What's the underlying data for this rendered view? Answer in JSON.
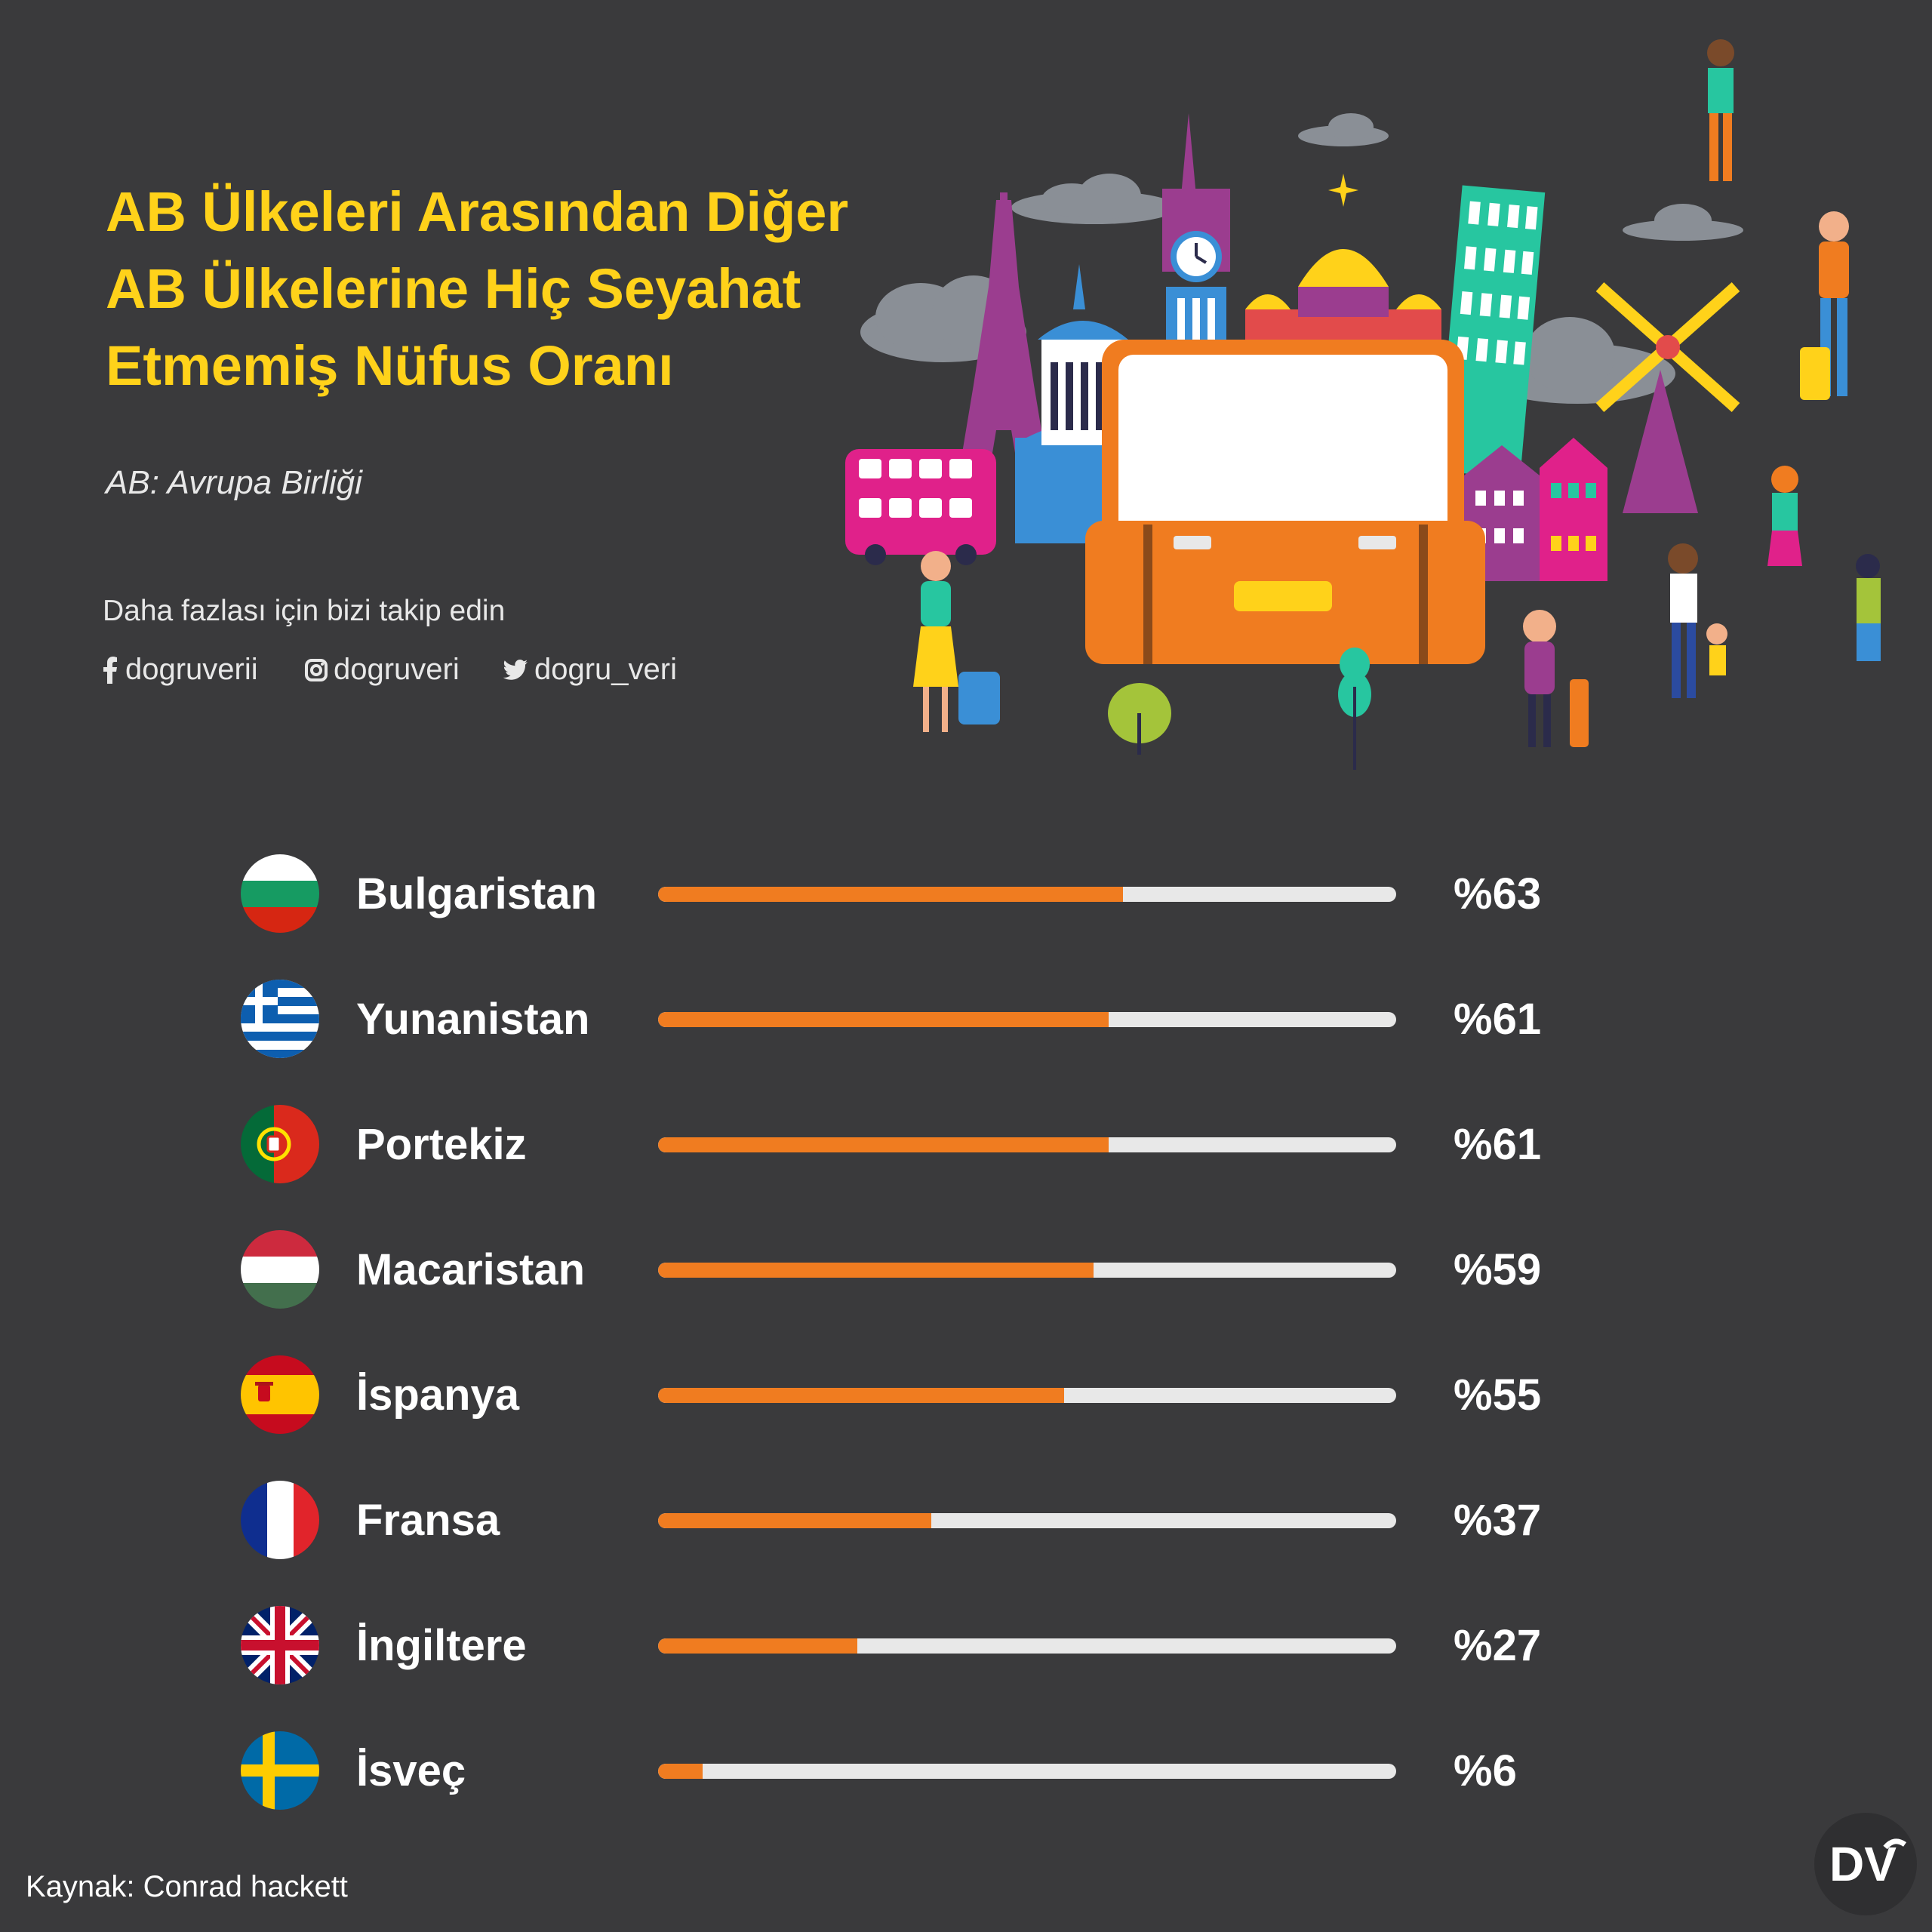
{
  "title_lines": [
    "AB Ülkeleri Arasından Diğer",
    "AB Ülkelerine Hiç Seyahat",
    "Etmemiş Nüfus Oranı"
  ],
  "subtitle": "AB: Avrupa Birliği",
  "follow_text": "Daha fazlası için bizi takip edin",
  "social": {
    "facebook": "dogruverii",
    "instagram": "dogruveri",
    "twitter": "dogru_veri"
  },
  "source": "Kaynak: Conrad hackett",
  "logo_text": "DV",
  "colors": {
    "accent": "#f07c20",
    "title": "#ffd21a",
    "track": "#e8e8e8",
    "background": "#3a3a3c"
  },
  "chart_data": {
    "type": "bar",
    "orientation": "horizontal",
    "xlim": [
      0,
      100
    ],
    "categories": [
      "Bulgaristan",
      "Yunanistan",
      "Portekiz",
      "Macaristan",
      "İspanya",
      "Fransa",
      "İngiltere",
      "İsveç"
    ],
    "values": [
      63,
      61,
      61,
      59,
      55,
      37,
      27,
      6
    ],
    "value_labels": [
      "%63",
      "%61",
      "%61",
      "%59",
      "%55",
      "%37",
      "%27",
      "%6"
    ],
    "flags": [
      "bulgaria-flag-icon",
      "greece-flag-icon",
      "portugal-flag-icon",
      "hungary-flag-icon",
      "spain-flag-icon",
      "france-flag-icon",
      "uk-flag-icon",
      "sweden-flag-icon"
    ]
  }
}
